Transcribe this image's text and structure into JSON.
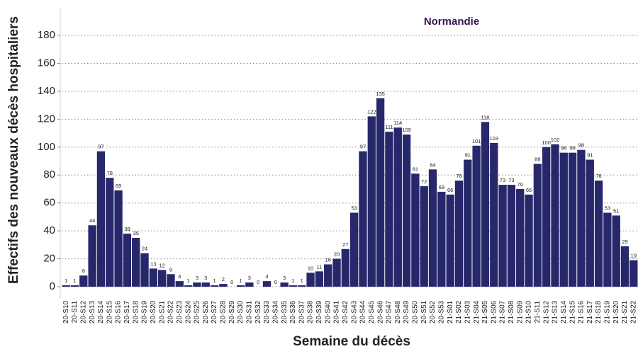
{
  "chart_data": {
    "type": "bar",
    "title": "Normandie",
    "x_label": "Semaine du décès",
    "y_label": "Effectifs des nouveaux décès hospitaliers",
    "categories": [
      "20-S10",
      "20-S11",
      "20-S12",
      "20-S13",
      "20-S14",
      "20-S15",
      "20-S16",
      "20-S17",
      "20-S18",
      "20-S19",
      "20-S20",
      "20-S21",
      "20-S22",
      "20-S23",
      "20-S24",
      "20-S25",
      "20-S26",
      "20-S27",
      "20-S28",
      "20-S29",
      "20-S30",
      "20-S31",
      "20-S32",
      "20-S33",
      "20-S34",
      "20-S35",
      "20-S36",
      "20-S37",
      "20-S38",
      "20-S39",
      "20-S40",
      "20-S41",
      "20-S42",
      "20-S43",
      "20-S44",
      "20-S45",
      "20-S46",
      "20-S47",
      "20-S48",
      "20-S49",
      "20-S50",
      "20-S51",
      "20-S52",
      "20-S53",
      "21-S01",
      "21-S02",
      "21-S03",
      "21-S04",
      "21-S05",
      "21-S06",
      "21-S07",
      "21-S08",
      "21-S09",
      "21-S10",
      "21-S11",
      "21-S12",
      "21-S13",
      "21-S14",
      "21-S15",
      "21-S16",
      "21-S17",
      "21-S18",
      "21-S19",
      "21-S20",
      "21-S21",
      "21-S22"
    ],
    "values": [
      1,
      1,
      8,
      44,
      97,
      78,
      69,
      38,
      35,
      24,
      13,
      12,
      9,
      4,
      1,
      3,
      3,
      1,
      2,
      0,
      1,
      3,
      0,
      4,
      0,
      3,
      1,
      1,
      10,
      11,
      16,
      20,
      27,
      53,
      97,
      122,
      135,
      111,
      114,
      109,
      81,
      72,
      84,
      68,
      66,
      76,
      91,
      101,
      118,
      103,
      73,
      73,
      70,
      66,
      88,
      100,
      102,
      96,
      96,
      98,
      91,
      76,
      53,
      51,
      29,
      19
    ],
    "color": "#27286b",
    "title_color": "#3b1450",
    "ylim": [
      -8,
      190
    ],
    "yticks": [
      0,
      20,
      40,
      60,
      80,
      100,
      120,
      140,
      160,
      180
    ],
    "grid": true
  }
}
